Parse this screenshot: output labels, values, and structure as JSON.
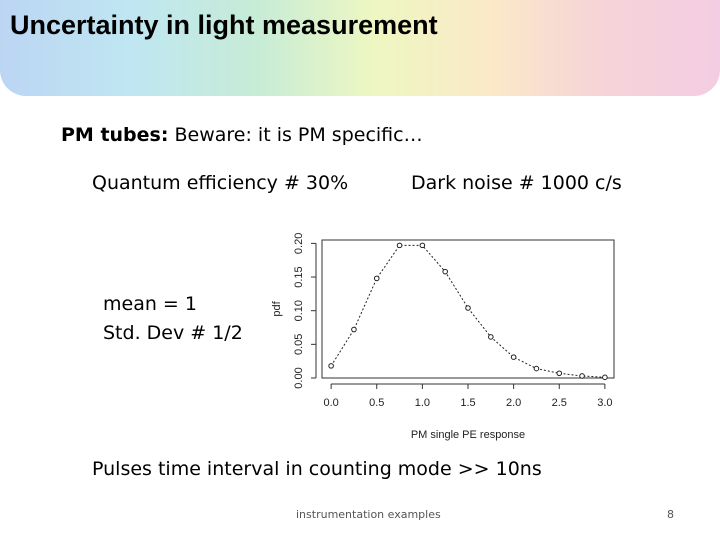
{
  "slide": {
    "title": "Uncertainty in light measurement",
    "pm_label": "PM tubes:",
    "pm_text": " Beware: it is PM specific…",
    "quantum_efficiency": "Quantum efficiency # 30%",
    "dark_noise": "Dark noise # 1000 c/s",
    "mean": "mean = 1",
    "std_dev": "Std. Dev # 1/2",
    "pulses": "Pulses time interval in counting mode >> 10ns",
    "footer": "instrumentation examples",
    "page_number": "8"
  },
  "chart_data": {
    "type": "line",
    "xlabel": "PM single PE response",
    "ylabel": "pdf",
    "xlim": [
      -0.1,
      3.1
    ],
    "ylim": [
      0,
      0.205
    ],
    "xticks": [
      0.0,
      0.5,
      1.0,
      1.5,
      2.0,
      2.5,
      3.0
    ],
    "xtick_labels": [
      "0.0",
      "0.5",
      "1.0",
      "1.5",
      "2.0",
      "2.5",
      "3.0"
    ],
    "yticks": [
      0.0,
      0.05,
      0.1,
      0.15,
      0.2
    ],
    "ytick_labels": [
      "0.00",
      "0.05",
      "0.10",
      "0.15",
      "0.20"
    ],
    "series": [
      {
        "x": [
          0.0,
          0.25,
          0.5,
          0.75,
          1.0,
          1.25,
          1.5,
          1.75,
          2.0,
          2.25,
          2.5,
          2.75,
          3.0
        ],
        "y": [
          0.018,
          0.072,
          0.148,
          0.197,
          0.197,
          0.158,
          0.104,
          0.061,
          0.031,
          0.014,
          0.007,
          0.003,
          0.001
        ]
      }
    ]
  }
}
